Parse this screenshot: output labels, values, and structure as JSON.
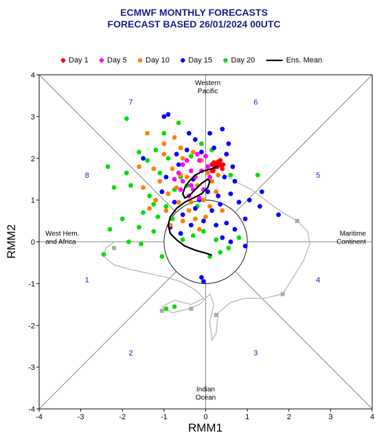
{
  "chart_data": {
    "type": "scatter",
    "title": "ECMWF MONTHLY FORECASTS",
    "subtitle": "FORECAST  BASED 26/01/2024 00UTC",
    "xlabel": "RMM1",
    "ylabel": "RMM2",
    "xlim": [
      -4,
      4
    ],
    "ylim": [
      -4,
      4
    ],
    "xticks": [
      "-4",
      "-3",
      "-2",
      "-1",
      "0",
      "1",
      "2",
      "3",
      "4"
    ],
    "yticks": [
      "-4",
      "-3",
      "-2",
      "-1",
      "0",
      "1",
      "2",
      "3",
      "4"
    ],
    "legend_placement": "top",
    "phase_labels": [
      {
        "text": "1",
        "x": -2.85,
        "y": -0.9
      },
      {
        "text": "2",
        "x": -1.8,
        "y": -2.65
      },
      {
        "text": "3",
        "x": 1.2,
        "y": -2.65
      },
      {
        "text": "4",
        "x": 2.7,
        "y": -0.9
      },
      {
        "text": "5",
        "x": 2.7,
        "y": 1.6
      },
      {
        "text": "6",
        "x": 1.2,
        "y": 3.35
      },
      {
        "text": "7",
        "x": -1.8,
        "y": 3.35
      },
      {
        "text": "8",
        "x": -2.85,
        "y": 1.6
      }
    ],
    "region_labels": [
      {
        "lines": [
          "Western",
          "Pacific"
        ],
        "x": 0.05,
        "y": 3.75,
        "anchor": "middle"
      },
      {
        "lines": [
          "West Hem.",
          "and Africa"
        ],
        "x": -3.85,
        "y": 0.15,
        "anchor": "start"
      },
      {
        "lines": [
          "Maritime",
          "Continent"
        ],
        "x": 3.85,
        "y": 0.15,
        "anchor": "end"
      },
      {
        "lines": [
          "Indian",
          "Ocean"
        ],
        "x": 0.0,
        "y": -3.58,
        "anchor": "middle"
      }
    ],
    "series": [
      {
        "name": "Day 1",
        "color": "#ff0000",
        "points": [
          [
            0.15,
            1.85
          ],
          [
            0.2,
            1.9
          ],
          [
            0.28,
            1.8
          ],
          [
            0.32,
            1.88
          ],
          [
            0.38,
            1.82
          ],
          [
            0.22,
            1.78
          ],
          [
            0.3,
            1.92
          ],
          [
            0.4,
            1.75
          ],
          [
            0.18,
            1.7
          ],
          [
            0.35,
            1.95
          ],
          [
            0.25,
            1.87
          ],
          [
            0.42,
            1.85
          ]
        ]
      },
      {
        "name": "Day 5",
        "color": "#ff00ff",
        "points": [
          [
            -0.55,
            1.45
          ],
          [
            -0.35,
            1.7
          ],
          [
            -0.15,
            1.95
          ],
          [
            0.05,
            1.8
          ],
          [
            -0.6,
            1.25
          ],
          [
            -0.45,
            1.95
          ],
          [
            -0.25,
            1.55
          ],
          [
            0.1,
            1.55
          ],
          [
            -0.05,
            1.25
          ],
          [
            -0.15,
            1.05
          ],
          [
            0.15,
            1.7
          ],
          [
            -0.65,
            1.65
          ],
          [
            -0.3,
            1.25
          ],
          [
            -0.4,
            1.1
          ],
          [
            -0.1,
            1.7
          ],
          [
            0.0,
            2.05
          ],
          [
            -0.2,
            2.1
          ],
          [
            -0.75,
            1.5
          ],
          [
            -0.55,
            1.85
          ],
          [
            -0.35,
            1.35
          ]
        ]
      },
      {
        "name": "Day 10",
        "color": "#ff7f00",
        "points": [
          [
            -1.4,
            2.6
          ],
          [
            -1.0,
            2.35
          ],
          [
            -0.6,
            2.25
          ],
          [
            -1.6,
            1.8
          ],
          [
            -0.9,
            1.15
          ],
          [
            -0.8,
            1.75
          ],
          [
            -0.55,
            2.0
          ],
          [
            -0.3,
            2.15
          ],
          [
            -0.1,
            1.95
          ],
          [
            0.15,
            1.45
          ],
          [
            -0.65,
            0.95
          ],
          [
            -0.4,
            0.75
          ],
          [
            -1.2,
            1.0
          ],
          [
            -0.85,
            0.4
          ],
          [
            -0.25,
            0.55
          ],
          [
            -0.05,
            1.0
          ],
          [
            0.1,
            0.85
          ],
          [
            0.4,
            0.75
          ],
          [
            -1.5,
            1.3
          ],
          [
            -1.1,
            1.45
          ],
          [
            -0.7,
            1.3
          ],
          [
            -0.45,
            1.55
          ],
          [
            -0.2,
            1.35
          ],
          [
            0.05,
            1.65
          ],
          [
            -1.35,
            0.8
          ],
          [
            -1.0,
            2.1
          ],
          [
            -0.75,
            2.5
          ],
          [
            -0.35,
            0.95
          ],
          [
            -0.15,
            0.3
          ],
          [
            0.25,
            1.2
          ],
          [
            -0.95,
            0.75
          ],
          [
            -0.55,
            0.5
          ],
          [
            0.0,
            0.6
          ],
          [
            -1.25,
            1.75
          ],
          [
            -0.6,
            1.6
          ],
          [
            0.3,
            1.6
          ]
        ]
      },
      {
        "name": "Day 15",
        "color": "#0000ff",
        "points": [
          [
            -1.0,
            3.0
          ],
          [
            -0.9,
            3.05
          ],
          [
            -0.4,
            2.6
          ],
          [
            -1.5,
            2.0
          ],
          [
            -0.25,
            2.45
          ],
          [
            0.1,
            2.6
          ],
          [
            0.4,
            2.7
          ],
          [
            0.5,
            2.1
          ],
          [
            0.65,
            1.8
          ],
          [
            0.6,
            1.15
          ],
          [
            0.8,
            0.95
          ],
          [
            0.95,
            0.55
          ],
          [
            0.7,
            0.3
          ],
          [
            0.4,
            0.1
          ],
          [
            0.6,
            0.0
          ],
          [
            0.95,
            -0.1
          ],
          [
            1.05,
            1.0
          ],
          [
            1.3,
            0.85
          ],
          [
            1.35,
            1.2
          ],
          [
            1.75,
            0.65
          ],
          [
            0.7,
            1.45
          ],
          [
            0.3,
            1.1
          ],
          [
            0.15,
            0.75
          ],
          [
            -0.05,
            0.5
          ],
          [
            -0.25,
            0.8
          ],
          [
            -0.55,
            0.65
          ],
          [
            -0.75,
            0.95
          ],
          [
            -1.05,
            1.2
          ],
          [
            -0.95,
            1.55
          ],
          [
            -0.65,
            1.85
          ],
          [
            -0.45,
            2.2
          ],
          [
            -0.1,
            2.15
          ],
          [
            0.2,
            2.25
          ],
          [
            0.45,
            1.55
          ],
          [
            -0.85,
            0.35
          ],
          [
            -0.6,
            0.2
          ],
          [
            -0.35,
            0.4
          ],
          [
            -0.15,
            1.0
          ],
          [
            0.05,
            1.2
          ],
          [
            -0.3,
            1.5
          ],
          [
            0.25,
            0.4
          ],
          [
            0.5,
            0.45
          ],
          [
            -0.1,
            -0.85
          ],
          [
            -0.05,
            -0.95
          ],
          [
            0.35,
            0.9
          ],
          [
            -0.7,
            2.1
          ],
          [
            0.55,
            2.35
          ]
        ]
      },
      {
        "name": "Day 20",
        "color": "#00e000",
        "points": [
          [
            -1.9,
            2.95
          ],
          [
            -1.2,
            2.2
          ],
          [
            -2.35,
            1.8
          ],
          [
            -2.2,
            1.3
          ],
          [
            -1.8,
            1.35
          ],
          [
            -1.35,
            1.1
          ],
          [
            -1.5,
            0.7
          ],
          [
            -2.0,
            0.55
          ],
          [
            -2.3,
            0.3
          ],
          [
            -1.85,
            0.0
          ],
          [
            -2.45,
            -0.3
          ],
          [
            -1.55,
            -0.05
          ],
          [
            -1.25,
            0.25
          ],
          [
            -1.15,
            0.6
          ],
          [
            -0.95,
            0.85
          ],
          [
            -0.8,
            0.55
          ],
          [
            -1.05,
            -0.35
          ],
          [
            -0.95,
            -1.6
          ],
          [
            -0.75,
            -1.55
          ],
          [
            -0.55,
            0.05
          ],
          [
            -0.3,
            0.15
          ],
          [
            -0.05,
            0.25
          ],
          [
            0.25,
            0.05
          ],
          [
            0.35,
            -0.25
          ],
          [
            0.55,
            -0.15
          ],
          [
            0.8,
            0.1
          ],
          [
            1.25,
            1.6
          ],
          [
            0.4,
            1.85
          ],
          [
            -0.1,
            2.35
          ],
          [
            -0.65,
            2.85
          ],
          [
            -1.0,
            2.6
          ],
          [
            -1.6,
            2.15
          ],
          [
            -1.9,
            1.65
          ],
          [
            -1.4,
            1.95
          ],
          [
            -0.45,
            1.35
          ],
          [
            -0.75,
            1.25
          ],
          [
            -1.1,
            1.65
          ],
          [
            -0.9,
            2.0
          ],
          [
            0.15,
            2.2
          ],
          [
            0.6,
            1.6
          ],
          [
            -0.2,
            0.85
          ],
          [
            -1.6,
            0.35
          ],
          [
            -0.6,
            1.55
          ],
          [
            0.1,
            -0.35
          ],
          [
            -0.35,
            2.05
          ],
          [
            -1.25,
            0.9
          ]
        ]
      }
    ],
    "ens_mean": {
      "name": "Ens. Mean",
      "color": "#000000",
      "points": [
        [
          0.3,
          1.82
        ],
        [
          0.15,
          1.75
        ],
        [
          -0.05,
          1.7
        ],
        [
          -0.25,
          1.6
        ],
        [
          -0.4,
          1.45
        ],
        [
          -0.5,
          1.3
        ],
        [
          -0.55,
          1.15
        ],
        [
          -0.5,
          1.05
        ],
        [
          -0.4,
          1.1
        ],
        [
          -0.25,
          1.25
        ],
        [
          -0.1,
          1.4
        ],
        [
          0.05,
          1.5
        ],
        [
          0.1,
          1.45
        ],
        [
          0.05,
          1.3
        ],
        [
          -0.1,
          1.15
        ],
        [
          -0.3,
          1.05
        ],
        [
          -0.5,
          0.95
        ],
        [
          -0.7,
          0.8
        ],
        [
          -0.85,
          0.6
        ],
        [
          -0.9,
          0.4
        ],
        [
          -0.85,
          0.2
        ],
        [
          -0.7,
          0.05
        ],
        [
          -0.5,
          -0.1
        ],
        [
          -0.25,
          -0.2
        ],
        [
          0.0,
          -0.27
        ],
        [
          0.15,
          -0.32
        ]
      ]
    },
    "past_track": {
      "color": "#bbbbbb",
      "marker_color": "#aaaaaa",
      "points": [
        [
          0.4,
          1.65
        ],
        [
          0.7,
          1.45
        ],
        [
          1.1,
          1.25
        ],
        [
          1.5,
          0.95
        ],
        [
          1.85,
          0.7
        ],
        [
          2.2,
          0.5
        ],
        [
          2.45,
          0.25
        ],
        [
          2.5,
          -0.05
        ],
        [
          2.35,
          -0.45
        ],
        [
          2.1,
          -0.85
        ],
        [
          1.85,
          -1.25
        ],
        [
          1.4,
          -1.35
        ],
        [
          0.95,
          -1.35
        ],
        [
          0.6,
          -1.45
        ],
        [
          0.3,
          -1.7
        ],
        [
          0.25,
          -2.2
        ],
        [
          0.15,
          -2.35
        ],
        [
          0.1,
          -1.9
        ],
        [
          0.2,
          -1.5
        ],
        [
          0.1,
          -1.25
        ],
        [
          -0.15,
          -1.5
        ],
        [
          -0.4,
          -1.6
        ],
        [
          -0.8,
          -1.7
        ],
        [
          -1.05,
          -1.55
        ],
        [
          -0.75,
          -1.4
        ],
        [
          -0.35,
          -1.5
        ],
        [
          -0.05,
          -1.35
        ],
        [
          -0.25,
          -1.15
        ],
        [
          -0.6,
          -0.95
        ],
        [
          -0.95,
          -0.85
        ],
        [
          -1.4,
          -0.75
        ],
        [
          -1.85,
          -0.65
        ],
        [
          -2.2,
          -0.55
        ],
        [
          -2.45,
          -0.35
        ],
        [
          -2.4,
          -0.15
        ],
        [
          -2.2,
          0.0
        ]
      ],
      "markers": [
        [
          2.2,
          0.5
        ],
        [
          1.85,
          -1.25
        ],
        [
          0.25,
          -1.75
        ],
        [
          -0.35,
          -1.6
        ],
        [
          -1.05,
          -1.65
        ],
        [
          -2.2,
          -0.15
        ]
      ]
    }
  },
  "legend": [
    {
      "label": "Day 1",
      "color": "#ff0000",
      "kind": "dot"
    },
    {
      "label": "Day 5",
      "color": "#ff00ff",
      "kind": "dot"
    },
    {
      "label": "Day 10",
      "color": "#ff7f00",
      "kind": "dot"
    },
    {
      "label": "Day 15",
      "color": "#0000ff",
      "kind": "dot"
    },
    {
      "label": "Day 20",
      "color": "#00e000",
      "kind": "dot"
    },
    {
      "label": "Ens. Mean",
      "color": "#000000",
      "kind": "line"
    }
  ]
}
